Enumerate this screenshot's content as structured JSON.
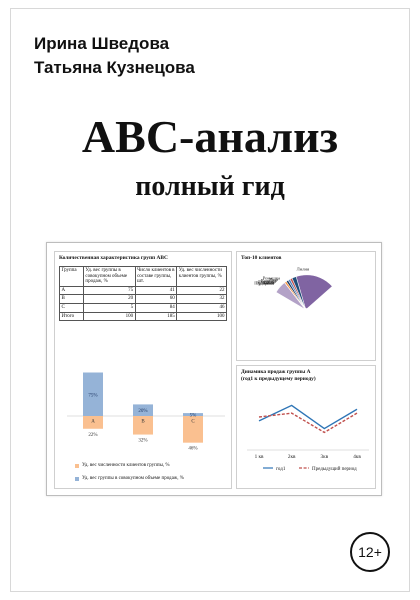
{
  "book": {
    "authors": [
      "Ирина Шведова",
      "Татьяна Кузнецова"
    ],
    "title": "АВС-анализ",
    "subtitle": "полный гид",
    "age_rating": "12+"
  },
  "table_panel": {
    "title": "Количественная характеристика групп АВС",
    "headers": [
      "Группа",
      "Уд. вес группы в совокупном объеме продаж, %",
      "Число клиентов в составе группы, шт.",
      "Уд. вес численности клиентов группы, %"
    ],
    "rows": [
      [
        "A",
        "75",
        "41",
        "22"
      ],
      [
        "B",
        "20",
        "60",
        "32"
      ],
      [
        "C",
        "5",
        "84",
        "46"
      ],
      [
        "Итого",
        "100",
        "185",
        "100"
      ]
    ]
  },
  "chart_data": [
    {
      "type": "bar",
      "categories": [
        "A",
        "B",
        "C"
      ],
      "series": [
        {
          "name": "Уд. вес группы в совокупном объеме продаж, %",
          "values": [
            75,
            20,
            5
          ],
          "labels": [
            "75%",
            "20%",
            "5%"
          ],
          "color": "#95b3d7"
        },
        {
          "name": "Уд. вес численности клиентов группы, %",
          "values": [
            -22,
            -32,
            -46
          ],
          "labels": [
            "22%",
            "32%",
            "46%"
          ],
          "color": "#fac090"
        }
      ],
      "ylim": [
        -50,
        80
      ]
    },
    {
      "type": "pie",
      "title": "Топ-10 клиентов",
      "labels": [
        "Лилия",
        "Ромашка",
        "Роза",
        "Василек",
        "Гвоздика",
        "Мак",
        "Пион",
        "Георгин",
        "Гортензия",
        "Рудбекия"
      ],
      "values": [
        30,
        12,
        10,
        9,
        8,
        7,
        6,
        6,
        6,
        6
      ],
      "colors": [
        "#8064a2",
        "#1f4e79",
        "#c0504d",
        "#4f81bd",
        "#17375e",
        "#f79646",
        "#95b3d7",
        "#b7dee8",
        "#4bacc6",
        "#b3a2c7"
      ]
    },
    {
      "type": "line",
      "title": "Динамика продаж группы А",
      "subtitle": "(год1 к предыдущему периоду)",
      "categories": [
        "1 кв",
        "2кв",
        "3кв",
        "4кв"
      ],
      "series": [
        {
          "name": "год1",
          "values": [
            6,
            10,
            4,
            9
          ],
          "color": "#2e75b6",
          "dash": false
        },
        {
          "name": "Предыдущий период",
          "values": [
            7,
            8,
            3,
            8
          ],
          "color": "#c0504d",
          "dash": true
        }
      ],
      "ylim": [
        0,
        14
      ]
    }
  ]
}
